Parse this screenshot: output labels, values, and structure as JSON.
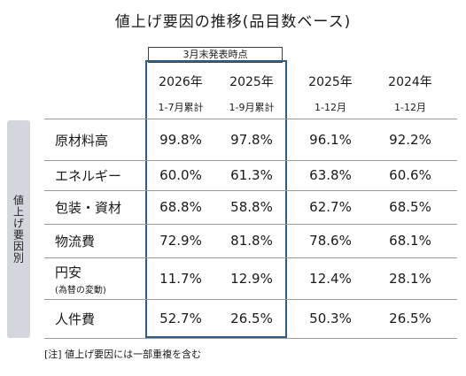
{
  "title": "値上げ要因の推移(品目数ベース)",
  "as_of_label": "3月末発表時点",
  "side_label": "値上げ要因別",
  "columns": [
    {
      "year": "2026年",
      "period": "1-7月累計"
    },
    {
      "year": "2025年",
      "period": "1-9月累計"
    },
    {
      "year": "2025年",
      "period": "1-12月"
    },
    {
      "year": "2024年",
      "period": "1-12月"
    }
  ],
  "rows": [
    {
      "label": "原材料高",
      "sub": "",
      "values": [
        "99.8%",
        "97.8%",
        "96.1%",
        "92.2%"
      ]
    },
    {
      "label": "エネルギー",
      "sub": "",
      "values": [
        "60.0%",
        "61.3%",
        "63.8%",
        "60.6%"
      ]
    },
    {
      "label": "包装・資材",
      "sub": "",
      "values": [
        "68.8%",
        "58.8%",
        "62.7%",
        "68.5%"
      ]
    },
    {
      "label": "物流費",
      "sub": "",
      "values": [
        "72.9%",
        "81.8%",
        "78.6%",
        "68.1%"
      ]
    },
    {
      "label": "円安",
      "sub": "(為替の変動)",
      "values": [
        "11.7%",
        "12.9%",
        "12.4%",
        "28.1%"
      ]
    },
    {
      "label": "人件費",
      "sub": "",
      "values": [
        "52.7%",
        "26.5%",
        "50.3%",
        "26.5%"
      ]
    }
  ],
  "note": "[注] 値上げ要因には一部重複を含む"
}
